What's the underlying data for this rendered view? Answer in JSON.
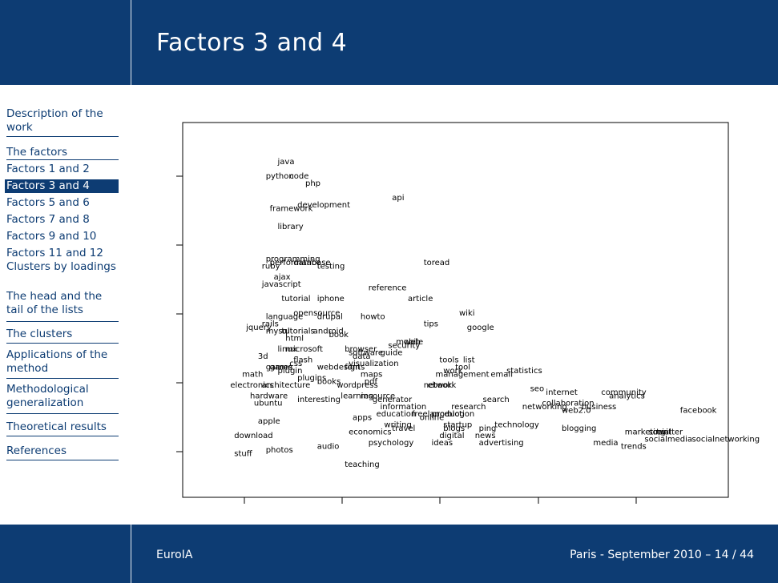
{
  "slide": {
    "title": "Factors 3 and 4",
    "footer_left": "EuroIA",
    "footer_right": "Paris - September 2010 – 14 / 44"
  },
  "sidebar": {
    "items": [
      {
        "label": "Description of the work"
      },
      {
        "label": "The factors"
      },
      {
        "label": "Factors 1 and 2"
      },
      {
        "label": "Factors 3 and 4",
        "active": true
      },
      {
        "label": "Factors 5 and 6"
      },
      {
        "label": "Factors 7 and 8"
      },
      {
        "label": "Factors 9 and 10"
      },
      {
        "label": "Factors 11 and 12"
      },
      {
        "label": "Clusters by loadings"
      },
      {
        "label": "The head and the tail of the lists"
      },
      {
        "label": "The clusters"
      },
      {
        "label": "Applications of the method"
      },
      {
        "label": "Methodological generalization"
      },
      {
        "label": "Theoretical results"
      },
      {
        "label": "References"
      }
    ]
  },
  "colors": {
    "header": "#0d3c73",
    "text": "#000000"
  },
  "chart_data": {
    "type": "scatter",
    "title": "",
    "xlabel": "",
    "ylabel": "",
    "grid": false,
    "labels": [
      {
        "text": "java",
        "x": 0.2,
        "y": 0.9
      },
      {
        "text": "python",
        "x": 0.17,
        "y": 0.86
      },
      {
        "text": "code",
        "x": 0.23,
        "y": 0.86
      },
      {
        "text": "php",
        "x": 0.27,
        "y": 0.84
      },
      {
        "text": "api",
        "x": 0.49,
        "y": 0.8
      },
      {
        "text": "framework",
        "x": 0.18,
        "y": 0.77
      },
      {
        "text": "development",
        "x": 0.25,
        "y": 0.78
      },
      {
        "text": "library",
        "x": 0.2,
        "y": 0.72
      },
      {
        "text": "programming",
        "x": 0.17,
        "y": 0.63
      },
      {
        "text": "performance",
        "x": 0.18,
        "y": 0.62
      },
      {
        "text": "database",
        "x": 0.24,
        "y": 0.62
      },
      {
        "text": "ruby",
        "x": 0.16,
        "y": 0.61
      },
      {
        "text": "testing",
        "x": 0.3,
        "y": 0.61
      },
      {
        "text": "toread",
        "x": 0.57,
        "y": 0.62
      },
      {
        "text": "ajax",
        "x": 0.19,
        "y": 0.58
      },
      {
        "text": "javascript",
        "x": 0.16,
        "y": 0.56
      },
      {
        "text": "reference",
        "x": 0.43,
        "y": 0.55
      },
      {
        "text": "tutorial",
        "x": 0.21,
        "y": 0.52
      },
      {
        "text": "iphone",
        "x": 0.3,
        "y": 0.52
      },
      {
        "text": "article",
        "x": 0.53,
        "y": 0.52
      },
      {
        "text": "opensource",
        "x": 0.24,
        "y": 0.48
      },
      {
        "text": "howto",
        "x": 0.41,
        "y": 0.47
      },
      {
        "text": "wiki",
        "x": 0.66,
        "y": 0.48
      },
      {
        "text": "language",
        "x": 0.17,
        "y": 0.47
      },
      {
        "text": "drupal",
        "x": 0.3,
        "y": 0.47
      },
      {
        "text": "rails",
        "x": 0.16,
        "y": 0.45
      },
      {
        "text": "tips",
        "x": 0.57,
        "y": 0.45
      },
      {
        "text": "google",
        "x": 0.68,
        "y": 0.44
      },
      {
        "text": "jquery",
        "x": 0.12,
        "y": 0.44
      },
      {
        "text": "mysql",
        "x": 0.17,
        "y": 0.43
      },
      {
        "text": "tutorials",
        "x": 0.21,
        "y": 0.43
      },
      {
        "text": "android",
        "x": 0.29,
        "y": 0.43
      },
      {
        "text": "book",
        "x": 0.33,
        "y": 0.42
      },
      {
        "text": "html",
        "x": 0.22,
        "y": 0.41
      },
      {
        "text": "mobile",
        "x": 0.5,
        "y": 0.4
      },
      {
        "text": "web",
        "x": 0.52,
        "y": 0.4
      },
      {
        "text": "security",
        "x": 0.48,
        "y": 0.39
      },
      {
        "text": "linux",
        "x": 0.2,
        "y": 0.38
      },
      {
        "text": "microsoft",
        "x": 0.22,
        "y": 0.38
      },
      {
        "text": "browser",
        "x": 0.37,
        "y": 0.38
      },
      {
        "text": "software",
        "x": 0.38,
        "y": 0.37
      },
      {
        "text": "guide",
        "x": 0.46,
        "y": 0.37
      },
      {
        "text": "3d",
        "x": 0.15,
        "y": 0.36
      },
      {
        "text": "data",
        "x": 0.39,
        "y": 0.36
      },
      {
        "text": "tools",
        "x": 0.61,
        "y": 0.35
      },
      {
        "text": "list",
        "x": 0.67,
        "y": 0.35
      },
      {
        "text": "flash",
        "x": 0.24,
        "y": 0.35
      },
      {
        "text": "css",
        "x": 0.23,
        "y": 0.34
      },
      {
        "text": "visualization",
        "x": 0.38,
        "y": 0.34
      },
      {
        "text": "games",
        "x": 0.17,
        "y": 0.33
      },
      {
        "text": "game",
        "x": 0.18,
        "y": 0.33
      },
      {
        "text": "webdesign",
        "x": 0.3,
        "y": 0.33
      },
      {
        "text": "fonts",
        "x": 0.37,
        "y": 0.33
      },
      {
        "text": "tool",
        "x": 0.65,
        "y": 0.33
      },
      {
        "text": "work",
        "x": 0.62,
        "y": 0.32
      },
      {
        "text": "statistics",
        "x": 0.78,
        "y": 0.32
      },
      {
        "text": "plugin",
        "x": 0.2,
        "y": 0.32
      },
      {
        "text": "math",
        "x": 0.11,
        "y": 0.31
      },
      {
        "text": "maps",
        "x": 0.41,
        "y": 0.31
      },
      {
        "text": "management",
        "x": 0.6,
        "y": 0.31
      },
      {
        "text": "email",
        "x": 0.74,
        "y": 0.31
      },
      {
        "text": "plugins",
        "x": 0.25,
        "y": 0.3
      },
      {
        "text": "books",
        "x": 0.3,
        "y": 0.29
      },
      {
        "text": "pdf",
        "x": 0.42,
        "y": 0.29
      },
      {
        "text": "electronics",
        "x": 0.08,
        "y": 0.28
      },
      {
        "text": "architecture",
        "x": 0.16,
        "y": 0.28
      },
      {
        "text": "wordpress",
        "x": 0.35,
        "y": 0.28
      },
      {
        "text": "network",
        "x": 0.57,
        "y": 0.28
      },
      {
        "text": "ebook",
        "x": 0.58,
        "y": 0.28
      },
      {
        "text": "seo",
        "x": 0.84,
        "y": 0.27
      },
      {
        "text": "internet",
        "x": 0.88,
        "y": 0.26
      },
      {
        "text": "community",
        "x": 1.02,
        "y": 0.26
      },
      {
        "text": "analytics",
        "x": 1.04,
        "y": 0.25
      },
      {
        "text": "hardware",
        "x": 0.13,
        "y": 0.25
      },
      {
        "text": "learning",
        "x": 0.36,
        "y": 0.25
      },
      {
        "text": "resource",
        "x": 0.41,
        "y": 0.25
      },
      {
        "text": "generator",
        "x": 0.44,
        "y": 0.24
      },
      {
        "text": "search",
        "x": 0.72,
        "y": 0.24
      },
      {
        "text": "interesting",
        "x": 0.25,
        "y": 0.24
      },
      {
        "text": "ubuntu",
        "x": 0.14,
        "y": 0.23
      },
      {
        "text": "collaboration",
        "x": 0.87,
        "y": 0.23
      },
      {
        "text": "networking",
        "x": 0.82,
        "y": 0.22
      },
      {
        "text": "information",
        "x": 0.46,
        "y": 0.22
      },
      {
        "text": "research",
        "x": 0.64,
        "y": 0.22
      },
      {
        "text": "business",
        "x": 0.97,
        "y": 0.22
      },
      {
        "text": "web2.0",
        "x": 0.92,
        "y": 0.21
      },
      {
        "text": "facebook",
        "x": 1.22,
        "y": 0.21
      },
      {
        "text": "freelance",
        "x": 0.54,
        "y": 0.2
      },
      {
        "text": "production",
        "x": 0.59,
        "y": 0.2
      },
      {
        "text": "blog",
        "x": 0.63,
        "y": 0.2
      },
      {
        "text": "apps",
        "x": 0.39,
        "y": 0.19
      },
      {
        "text": "education",
        "x": 0.45,
        "y": 0.2
      },
      {
        "text": "online",
        "x": 0.56,
        "y": 0.19
      },
      {
        "text": "apple",
        "x": 0.15,
        "y": 0.18
      },
      {
        "text": "startup",
        "x": 0.62,
        "y": 0.17
      },
      {
        "text": "technology",
        "x": 0.75,
        "y": 0.17
      },
      {
        "text": "writing",
        "x": 0.47,
        "y": 0.17
      },
      {
        "text": "travel",
        "x": 0.49,
        "y": 0.16
      },
      {
        "text": "economics",
        "x": 0.38,
        "y": 0.15
      },
      {
        "text": "blogs",
        "x": 0.62,
        "y": 0.16
      },
      {
        "text": "ping",
        "x": 0.71,
        "y": 0.16
      },
      {
        "text": "blogging",
        "x": 0.92,
        "y": 0.16
      },
      {
        "text": "marketing",
        "x": 1.08,
        "y": 0.15
      },
      {
        "text": "social",
        "x": 1.14,
        "y": 0.15
      },
      {
        "text": "twitter",
        "x": 1.16,
        "y": 0.15
      },
      {
        "text": "download",
        "x": 0.09,
        "y": 0.14
      },
      {
        "text": "digital",
        "x": 0.61,
        "y": 0.14
      },
      {
        "text": "news",
        "x": 0.7,
        "y": 0.14
      },
      {
        "text": "socialmedia",
        "x": 1.13,
        "y": 0.13
      },
      {
        "text": "socialnetworking",
        "x": 1.25,
        "y": 0.13
      },
      {
        "text": "psychology",
        "x": 0.43,
        "y": 0.12
      },
      {
        "text": "ideas",
        "x": 0.59,
        "y": 0.12
      },
      {
        "text": "advertising",
        "x": 0.71,
        "y": 0.12
      },
      {
        "text": "media",
        "x": 1.0,
        "y": 0.12
      },
      {
        "text": "trends",
        "x": 1.07,
        "y": 0.11
      },
      {
        "text": "audio",
        "x": 0.3,
        "y": 0.11
      },
      {
        "text": "photos",
        "x": 0.17,
        "y": 0.1
      },
      {
        "text": "stuff",
        "x": 0.09,
        "y": 0.09
      },
      {
        "text": "teaching",
        "x": 0.37,
        "y": 0.06
      }
    ]
  }
}
